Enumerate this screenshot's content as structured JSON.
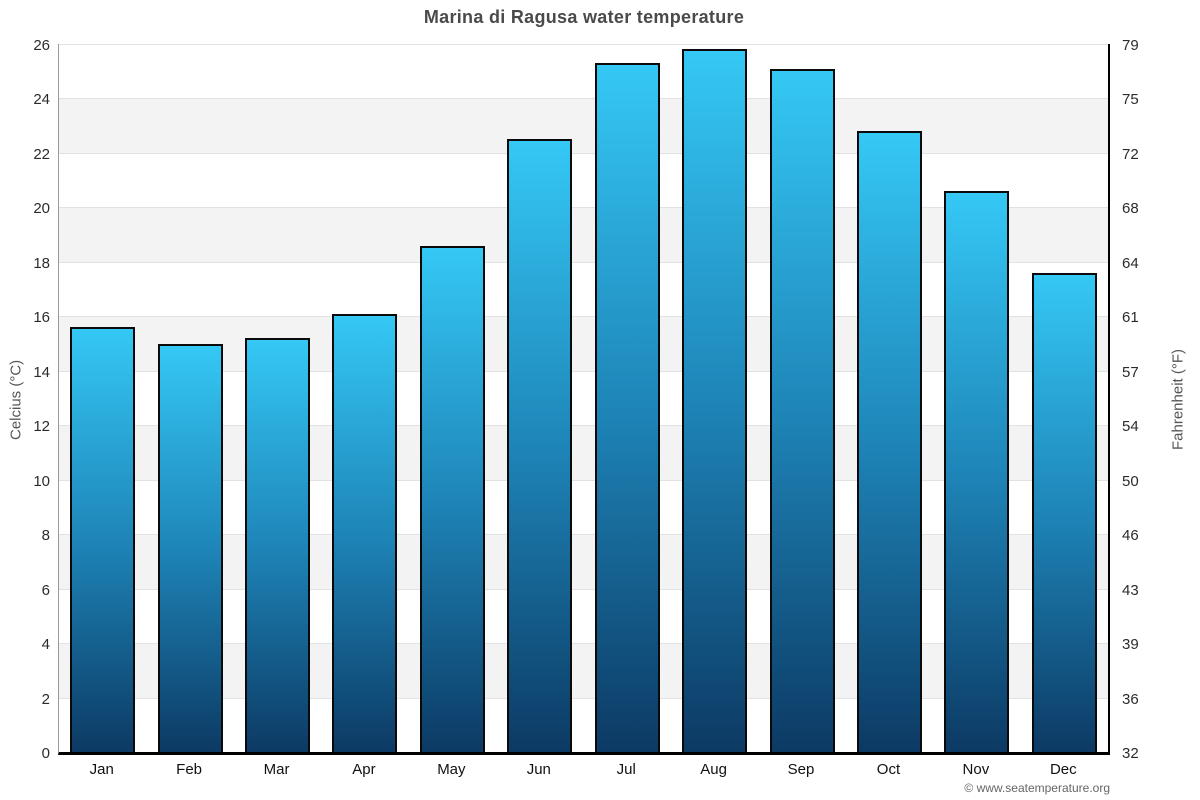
{
  "chart_data": {
    "type": "bar",
    "title": "Marina di Ragusa water temperature",
    "categories": [
      "Jan",
      "Feb",
      "Mar",
      "Apr",
      "May",
      "Jun",
      "Jul",
      "Aug",
      "Sep",
      "Oct",
      "Nov",
      "Dec"
    ],
    "values": [
      15.6,
      15.0,
      15.2,
      16.1,
      18.6,
      22.5,
      25.3,
      25.8,
      25.1,
      22.8,
      20.6,
      17.6
    ],
    "ylabel_left": "Celcius (°C)",
    "ylabel_right": "Fahrenheit (°F)",
    "yticks_celsius": [
      0,
      2,
      4,
      6,
      8,
      10,
      12,
      14,
      16,
      18,
      20,
      22,
      24,
      26
    ],
    "yticks_fahrenheit": [
      32,
      36,
      39,
      43,
      46,
      50,
      54,
      57,
      61,
      64,
      68,
      72,
      75,
      79
    ],
    "ylim": [
      0,
      26
    ],
    "grid": true,
    "legend": "none",
    "colors": {
      "bar_gradient_top": "#35c8f5",
      "bar_gradient_mid": "#1e85b8",
      "bar_gradient_bottom": "#0c3a64",
      "bar_border": "#0a0a0a",
      "band_fill": "#f3f3f3",
      "gridline": "#e2e2e2",
      "title_text": "#4a4a4a",
      "axis_text": "#2b2b2b"
    }
  },
  "footer": {
    "credit": "© www.seatemperature.org"
  }
}
